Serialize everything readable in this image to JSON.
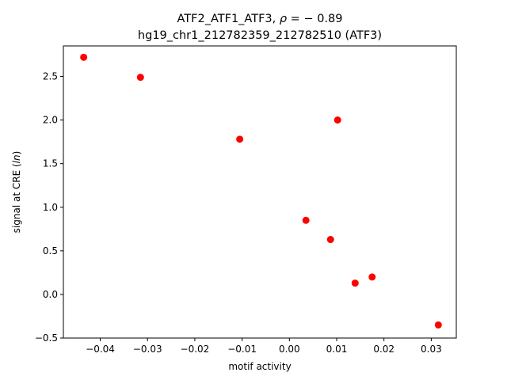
{
  "chart_data": {
    "type": "scatter",
    "title_line1_prefix": "ATF2_ATF1_ATF3, ",
    "title_line1_rho": "ρ",
    "title_line1_suffix": " = − 0.89",
    "title_line2": "hg19_chr1_212782359_212782510 (ATF3)",
    "xlabel": "motif activity",
    "ylabel_prefix": "signal at CRE (",
    "ylabel_italic": "ln",
    "ylabel_suffix": ")",
    "xlim": [
      -0.0478,
      0.0353
    ],
    "ylim": [
      -0.5,
      2.85
    ],
    "xticks": [
      {
        "value": -0.04,
        "label": "−0.04"
      },
      {
        "value": -0.03,
        "label": "−0.03"
      },
      {
        "value": -0.02,
        "label": "−0.02"
      },
      {
        "value": -0.01,
        "label": "−0.01"
      },
      {
        "value": 0.0,
        "label": "0.00"
      },
      {
        "value": 0.01,
        "label": "0.01"
      },
      {
        "value": 0.02,
        "label": "0.02"
      },
      {
        "value": 0.03,
        "label": "0.03"
      }
    ],
    "yticks": [
      {
        "value": -0.5,
        "label": "−0.5"
      },
      {
        "value": 0.0,
        "label": "0.0"
      },
      {
        "value": 0.5,
        "label": "0.5"
      },
      {
        "value": 1.0,
        "label": "1.0"
      },
      {
        "value": 1.5,
        "label": "1.5"
      },
      {
        "value": 2.0,
        "label": "2.0"
      },
      {
        "value": 2.5,
        "label": "2.5"
      }
    ],
    "marker_color": "#ff0000",
    "grid": false,
    "points": [
      {
        "x": -0.0435,
        "y": 2.72
      },
      {
        "x": -0.0315,
        "y": 2.49
      },
      {
        "x": -0.0105,
        "y": 1.78
      },
      {
        "x": 0.0102,
        "y": 2.0
      },
      {
        "x": 0.0035,
        "y": 0.85
      },
      {
        "x": 0.0087,
        "y": 0.63
      },
      {
        "x": 0.0139,
        "y": 0.13
      },
      {
        "x": 0.0175,
        "y": 0.2
      },
      {
        "x": 0.0315,
        "y": -0.35
      }
    ]
  }
}
